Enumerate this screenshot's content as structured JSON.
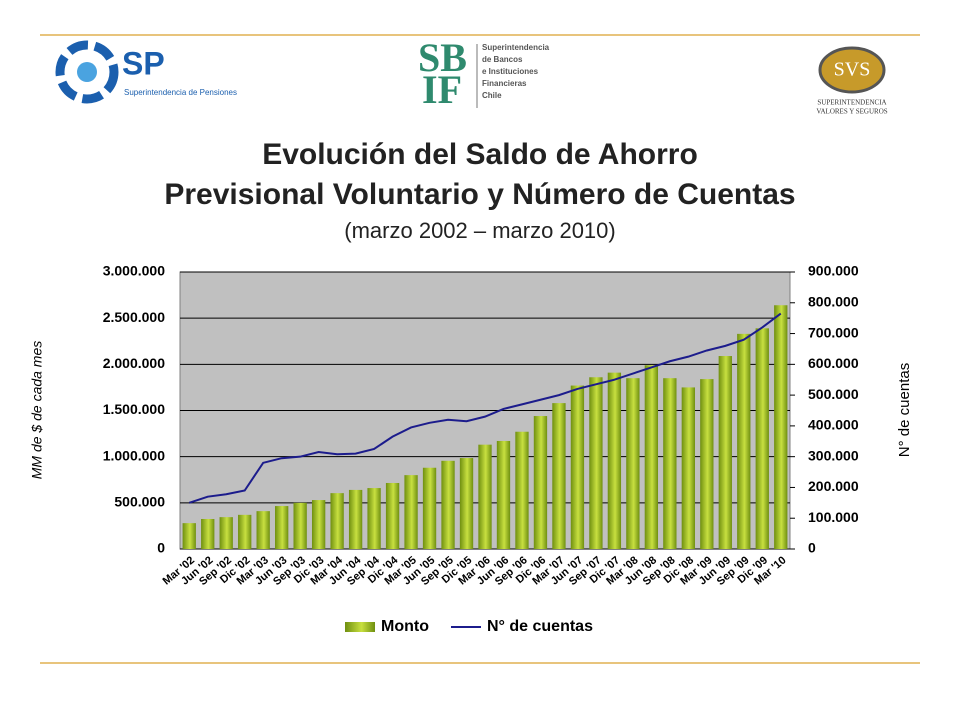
{
  "logos": {
    "sp": {
      "mark": "SP",
      "caption": "Superintendencia de Pensiones"
    },
    "sbif": {
      "top": "SB",
      "bottom": "IF",
      "lines": [
        "Superintendencia",
        "de Bancos",
        "e Instituciones",
        "Financieras",
        "Chile"
      ]
    },
    "svs": {
      "mark": "SVS",
      "lines": [
        "SUPERINTENDENCIA",
        "VALORES Y SEGUROS"
      ]
    }
  },
  "chart_data": {
    "type": "bar",
    "title": [
      "Evolución del Saldo de Ahorro",
      "Previsional Voluntario y Número de Cuentas"
    ],
    "subtitle": "(marzo 2002 – marzo 2010)",
    "y_label": "MM de $ de cada mes",
    "y2_label": "N° de cuentas",
    "categories": [
      "Mar '02",
      "Jun '02",
      "Sep '02",
      "Dic '02",
      "Mar '03",
      "Jun '03",
      "Sep '03",
      "Dic '03",
      "Mar '04",
      "Jun '04",
      "Sep '04",
      "Dic '04",
      "Mar '05",
      "Jun '05",
      "Sep '05",
      "Dic '05",
      "Mar '06",
      "Jun '06",
      "Sep '06",
      "Dic '06",
      "Mar '07",
      "Jun '07",
      "Sep '07",
      "Dic '07",
      "Mar '08",
      "Jun '08",
      "Sep '08",
      "Dic '08",
      "Mar '09",
      "Jun '09",
      "Sep '09",
      "Dic '09",
      "Mar '10"
    ],
    "series": [
      {
        "name": "Monto",
        "type": "bar",
        "color": "#6f8f10",
        "values": [
          280000,
          325000,
          345000,
          370000,
          410000,
          465000,
          500000,
          530000,
          605000,
          640000,
          660000,
          715000,
          800000,
          880000,
          955000,
          985000,
          1130000,
          1170000,
          1270000,
          1440000,
          1580000,
          1770000,
          1860000,
          1910000,
          1850000,
          1990000,
          1850000,
          1750000,
          1840000,
          2090000,
          2330000,
          2390000,
          2640000
        ]
      },
      {
        "name": "N° de cuentas",
        "type": "line",
        "axis": "y2",
        "color": "#1c1c8c",
        "values": [
          150000,
          170000,
          178000,
          190000,
          280000,
          295000,
          300000,
          315000,
          308000,
          310000,
          325000,
          365000,
          395000,
          410000,
          420000,
          415000,
          430000,
          455000,
          470000,
          485000,
          500000,
          520000,
          535000,
          550000,
          570000,
          590000,
          610000,
          625000,
          645000,
          660000,
          680000,
          720000,
          765000
        ]
      }
    ],
    "ylim": [
      0,
      3000000
    ],
    "yticks": [
      0,
      {
        "value": 500000,
        "label": "500.000"
      },
      {
        "value": 1000000,
        "label": "1.000.000"
      },
      {
        "value": 1500000,
        "label": "1.500.000"
      },
      {
        "value": 2000000,
        "label": "2.000.000"
      },
      {
        "value": 2500000,
        "label": "2.500.000"
      },
      {
        "value": 3000000,
        "label": "3.000.000"
      }
    ],
    "y2lim": [
      0,
      900000
    ],
    "y2ticks": [
      0,
      {
        "value": 100000,
        "label": "100.000"
      },
      {
        "value": 200000,
        "label": "200.000"
      },
      {
        "value": 300000,
        "label": "300.000"
      },
      {
        "value": 400000,
        "label": "400.000"
      },
      {
        "value": 500000,
        "label": "500.000"
      },
      {
        "value": 600000,
        "label": "600.000"
      },
      {
        "value": 700000,
        "label": "700.000"
      },
      {
        "value": 800000,
        "label": "800.000"
      },
      {
        "value": 900000,
        "label": "900.000"
      }
    ],
    "grid": true,
    "legend": "bottom"
  }
}
